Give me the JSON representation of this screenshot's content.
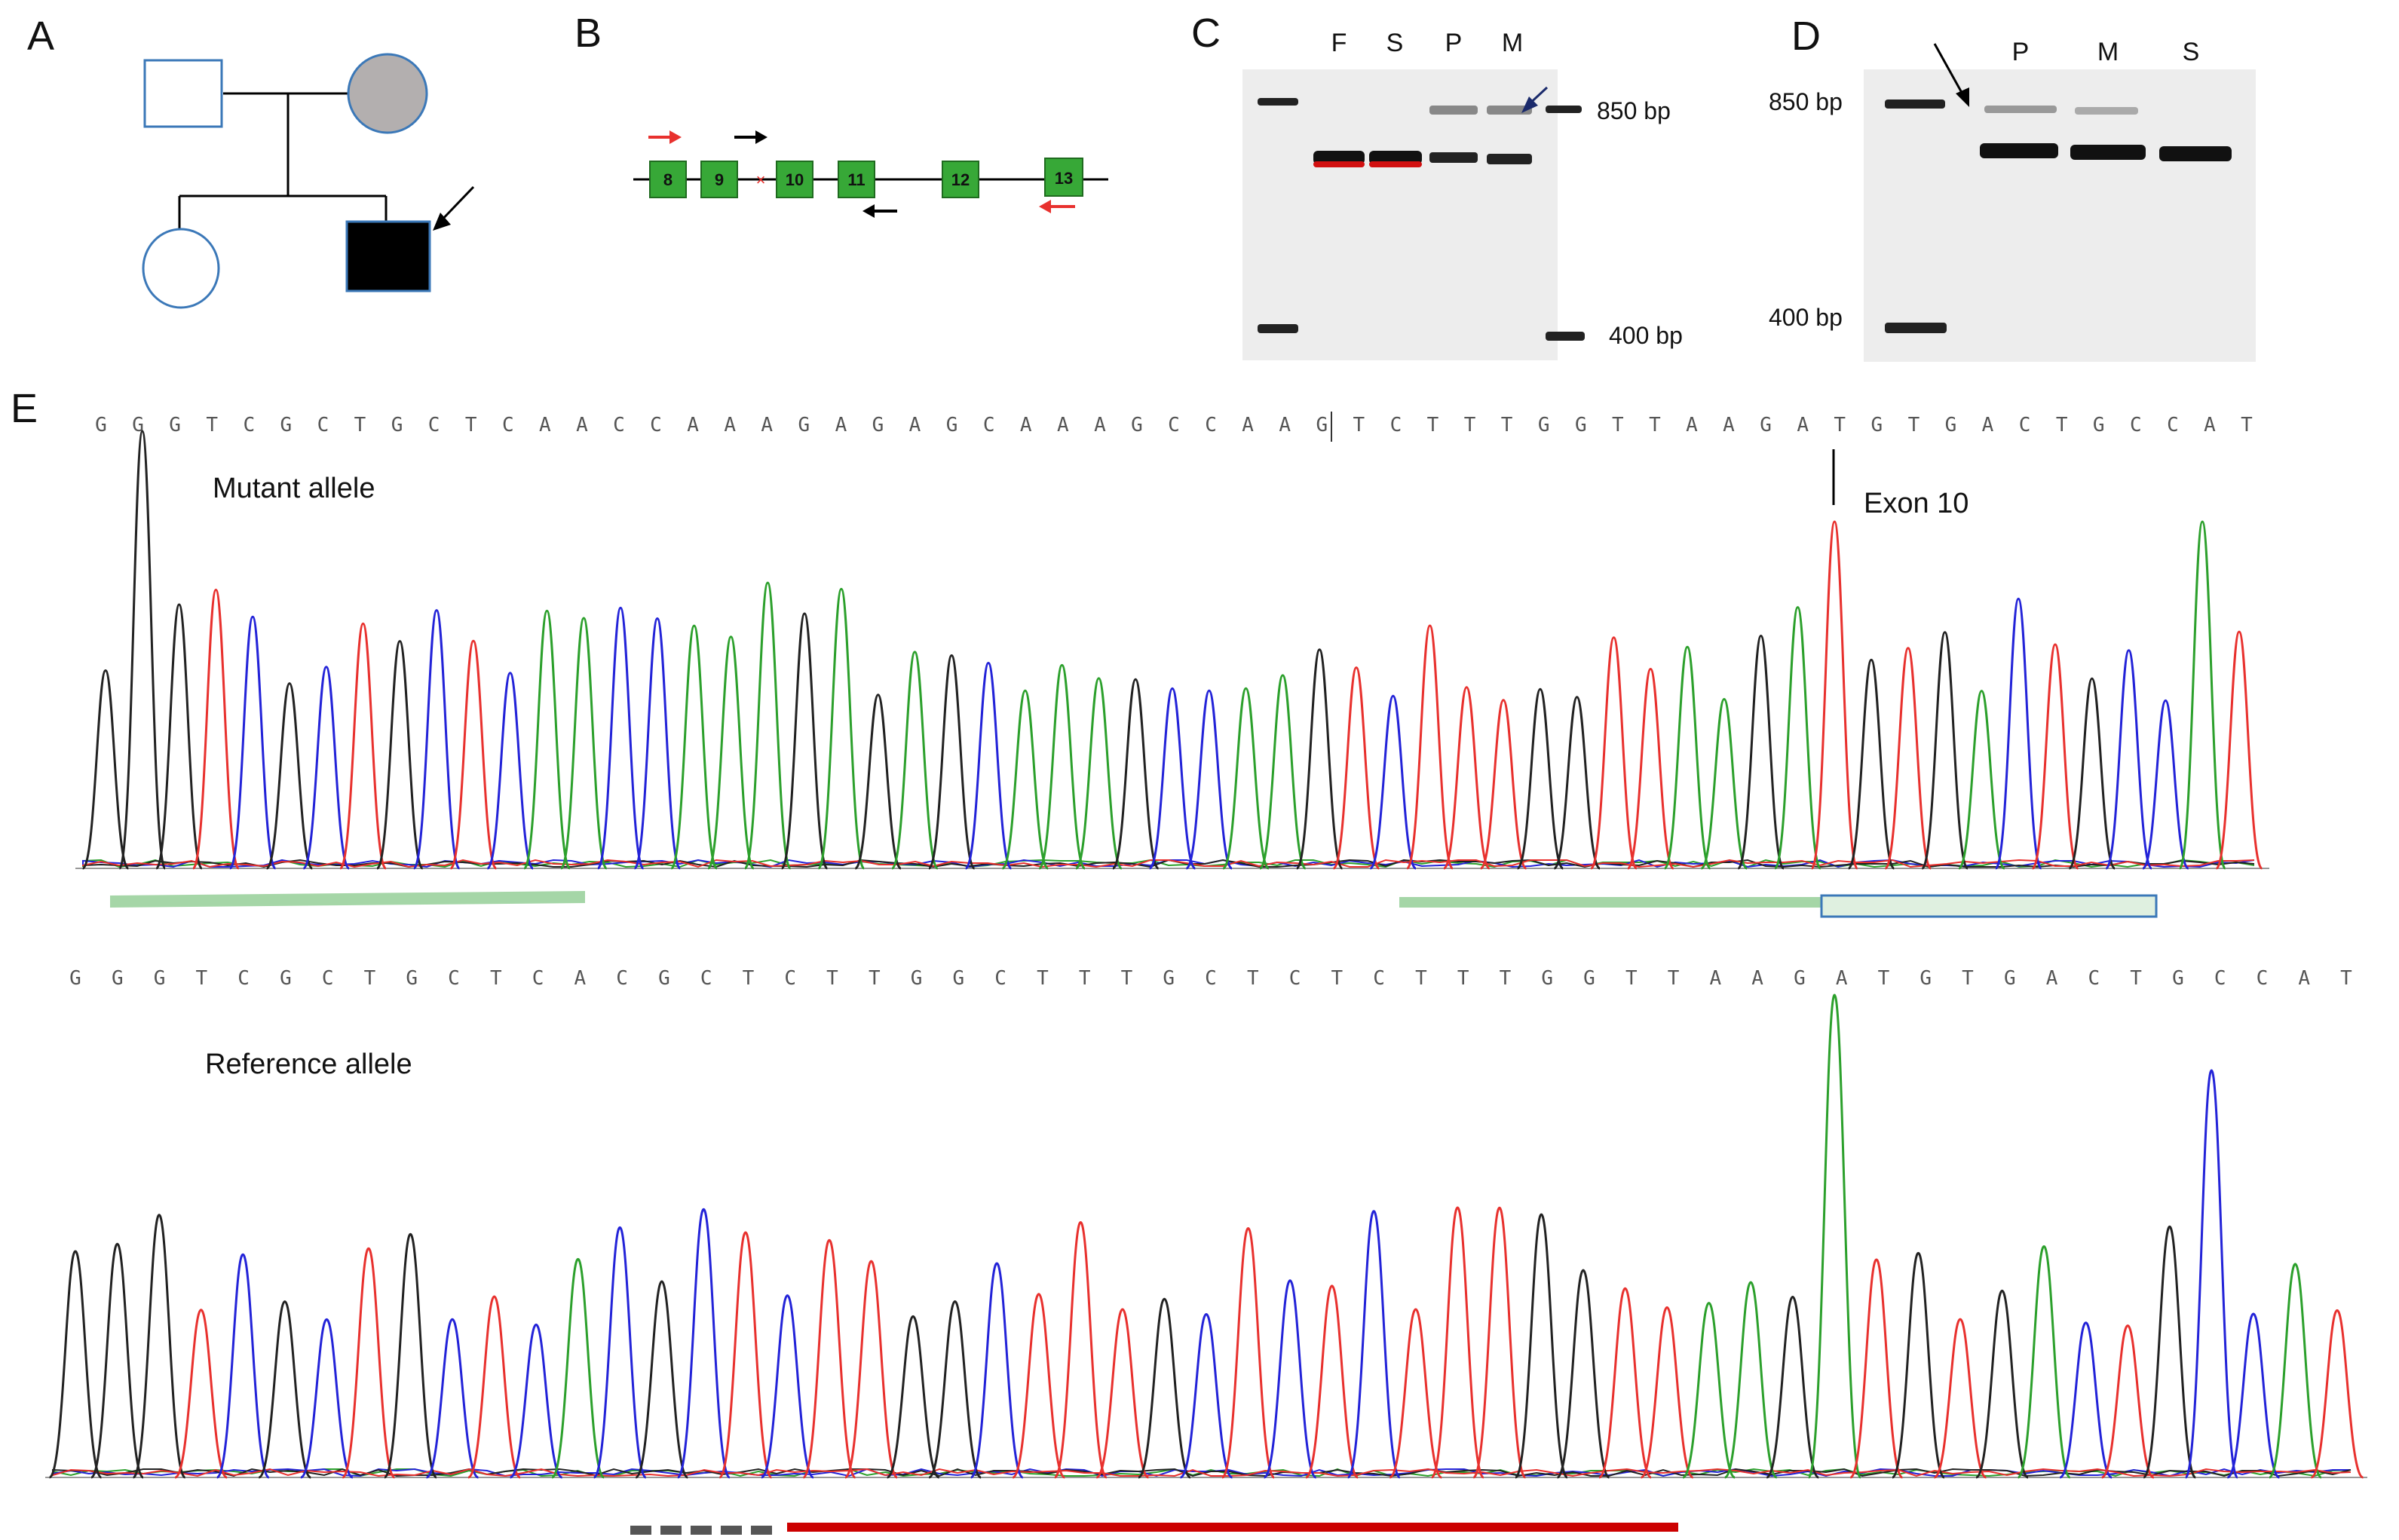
{
  "panels": {
    "a": {
      "label": "A"
    },
    "b": {
      "label": "B",
      "exons": [
        "8",
        "9",
        "10",
        "11",
        "12",
        "13"
      ]
    },
    "c": {
      "label": "C",
      "lanes": [
        "F",
        "S",
        "P",
        "M"
      ],
      "marker_high": "850 bp",
      "marker_low": "400 bp"
    },
    "d": {
      "label": "D",
      "lanes": [
        "P",
        "M",
        "S"
      ],
      "marker_high": "850 bp",
      "marker_low": "400 bp"
    },
    "e": {
      "label": "E",
      "mutant_label": "Mutant allele",
      "reference_label": "Reference allele",
      "exon_label": "Exon 10",
      "mutant_sequence": "GGGTCGCTGCTCAACCAAAGAGAGCAAAGCCAAGTCTTTGGTTAAGATGTGACTGCCAT",
      "reference_sequence": "GGGTCGCTGCTCACGCTCTTGGCTTTGCTCTCTTTGGTTAAGATGTGACTGCCAT"
    }
  },
  "colors": {
    "trace_a": "#2ca02c",
    "trace_c": "#2323d8",
    "trace_g": "#222222",
    "trace_t": "#e8312e",
    "pedigree_line": "#3b78b8",
    "affected_gray": "#b3afaf",
    "exon_green": "#37a837",
    "highlight_green": "#a5d6a7",
    "red_bar": "#cc0000"
  }
}
